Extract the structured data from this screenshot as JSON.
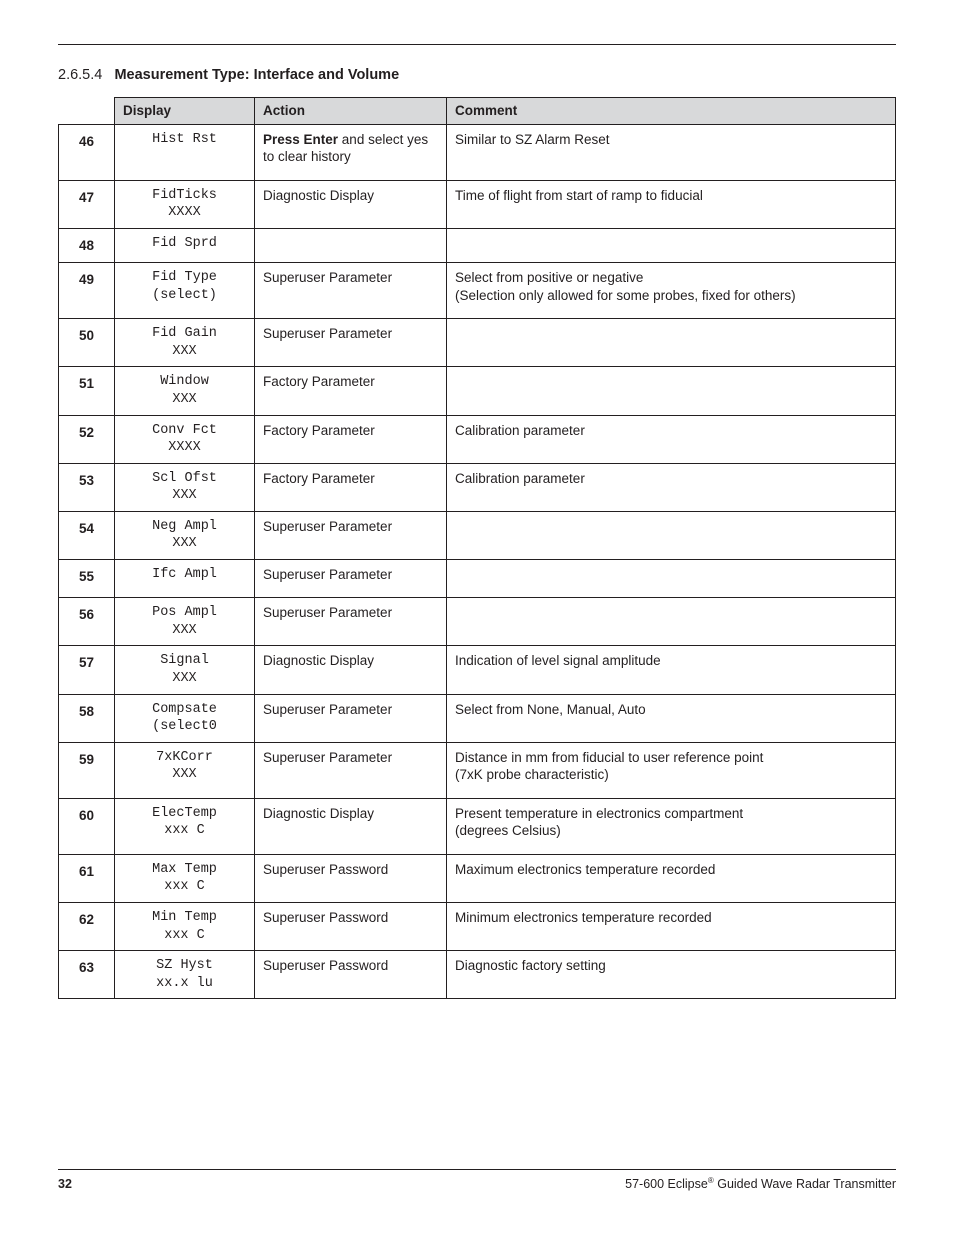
{
  "heading": {
    "number": "2.6.5.4",
    "title": "Measurement Type: Interface and Volume"
  },
  "columns": {
    "display": "Display",
    "action": "Action",
    "comment": "Comment"
  },
  "rows": [
    {
      "n": "46",
      "display": "Hist Rst",
      "action_bold": "Press Enter",
      "action_rest": " and select yes to clear history",
      "comment": "Similar to SZ Alarm Reset"
    },
    {
      "n": "47",
      "display": "FidTicks\nXXXX",
      "action": "Diagnostic Display",
      "comment": "Time of flight from start of ramp to fiducial"
    },
    {
      "n": "48",
      "display": "Fid Sprd",
      "action": "",
      "comment": ""
    },
    {
      "n": "49",
      "display": "Fid Type\n(select)",
      "action": "Superuser Parameter",
      "comment": "Select from positive or negative\n(Selection only allowed for some probes, fixed for others)"
    },
    {
      "n": "50",
      "display": "Fid Gain\nXXX",
      "action": "Superuser Parameter",
      "comment": ""
    },
    {
      "n": "51",
      "display": "Window\nXXX",
      "action": "Factory Parameter",
      "comment": ""
    },
    {
      "n": "52",
      "display": "Conv Fct\nXXXX",
      "action": "Factory Parameter",
      "comment": "Calibration parameter"
    },
    {
      "n": "53",
      "display": "Scl Ofst\nXXX",
      "action": "Factory Parameter",
      "comment": "Calibration parameter"
    },
    {
      "n": "54",
      "display": "Neg Ampl\nXXX",
      "action": "Superuser Parameter",
      "comment": ""
    },
    {
      "n": "55",
      "display": "Ifc Ampl",
      "action": "Superuser Parameter",
      "comment": ""
    },
    {
      "n": "56",
      "display": "Pos Ampl\nXXX",
      "action": "Superuser Parameter",
      "comment": ""
    },
    {
      "n": "57",
      "display": "Signal\nXXX",
      "action": "Diagnostic Display",
      "comment": "Indication of level signal amplitude"
    },
    {
      "n": "58",
      "display": "Compsate\n(select0",
      "action": "Superuser Parameter",
      "comment": "Select from None, Manual, Auto"
    },
    {
      "n": "59",
      "display": "7xKCorr\nXXX",
      "action": "Superuser Parameter",
      "comment": "Distance in mm from fiducial to user reference point\n(7xK probe characteristic)"
    },
    {
      "n": "60",
      "display": "ElecTemp\nxxx C",
      "action": "Diagnostic Display",
      "comment": "Present temperature in electronics compartment\n(degrees Celsius)"
    },
    {
      "n": "61",
      "display": "Max Temp\nxxx C",
      "action": "Superuser Password",
      "comment": "Maximum electronics temperature recorded"
    },
    {
      "n": "62",
      "display": "Min Temp\nxxx C",
      "action": "Superuser Password",
      "comment": "Minimum electronics temperature recorded"
    },
    {
      "n": "63",
      "display": "SZ Hyst\nxx.x lu",
      "action": "Superuser Password",
      "comment": "Diagnostic factory setting"
    }
  ],
  "footer": {
    "page": "32",
    "doc_prefix": "57-600 Eclipse",
    "doc_suffix": " Guided Wave Radar Transmitter"
  }
}
